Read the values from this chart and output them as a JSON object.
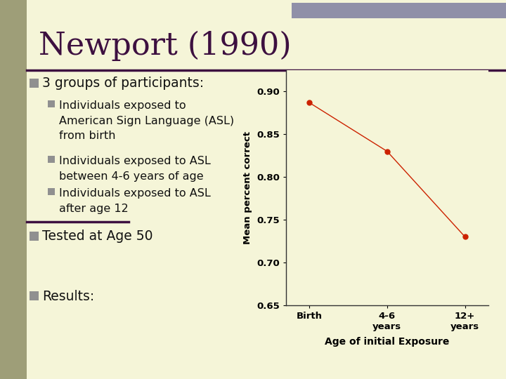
{
  "title": "Newport (1990)",
  "bg_color": "#f5f5d8",
  "left_bar_color": "#9e9e78",
  "left_bar_color2": "#3d2040",
  "header_bar_color": "#9090a8",
  "title_color": "#3d1040",
  "text_color": "#111111",
  "bullet_sq_main_color": "#909090",
  "bullet_sq_sub_color": "#909090",
  "divider_color": "#3d1040",
  "main_bullets": [
    "3 groups of participants:",
    "Tested at Age 50",
    "Results:"
  ],
  "sub_bullets": [
    "Individuals exposed to\nAmerican Sign Language (ASL)\nfrom birth",
    "Individuals exposed to ASL\nbetween 4-6 years of age",
    "Individuals exposed to ASL\nafter age 12"
  ],
  "x_labels": [
    "Birth",
    "4-6\nyears",
    "12+\nyears"
  ],
  "x_values": [
    0,
    1,
    2
  ],
  "y_values": [
    0.887,
    0.83,
    0.73
  ],
  "y_label": "Mean percent correct",
  "x_axis_label": "Age of initial Exposure",
  "y_min": 0.65,
  "y_max": 0.925,
  "y_ticks": [
    0.65,
    0.7,
    0.75,
    0.8,
    0.85,
    0.9
  ],
  "line_color": "#cc2200",
  "marker_color": "#cc2200",
  "chart_bg": "#f5f5d8"
}
